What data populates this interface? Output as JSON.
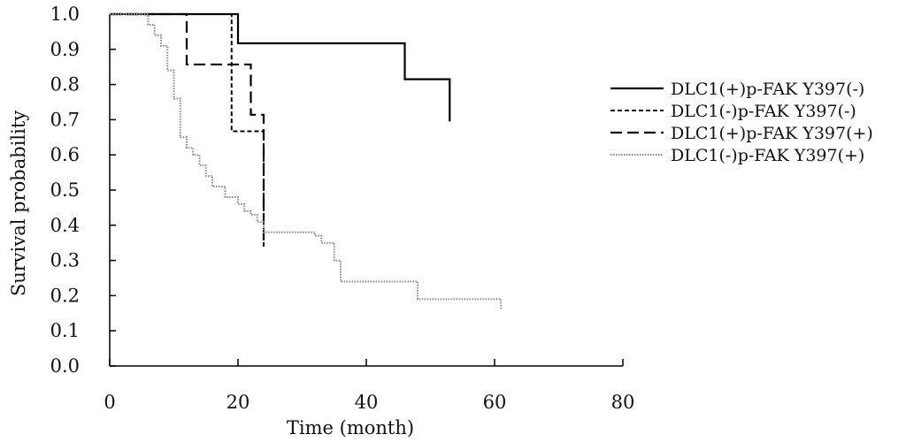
{
  "chart_data": {
    "type": "line",
    "step": true,
    "xlabel": "Time (month)",
    "ylabel": "Survival probability",
    "xlim": [
      0,
      80
    ],
    "ylim": [
      0,
      1
    ],
    "xticks": [
      0,
      20,
      40,
      60,
      80
    ],
    "xtick_labels": [
      "0",
      "20",
      "40",
      "60",
      "80"
    ],
    "yticks": [
      0,
      0.1,
      0.2,
      0.3,
      0.4,
      0.5,
      0.6,
      0.7,
      0.8,
      0.9,
      1.0
    ],
    "ytick_labels": [
      "0.0",
      "0.1",
      "0.2",
      "0.3",
      "0.4",
      "0.5",
      "0.6",
      "0.7",
      "0.8",
      "0.9",
      "1.0"
    ],
    "grid": false,
    "legend_position": "right",
    "series": [
      {
        "name": "DLC1(+)p-FAK Y397(-)",
        "line_style": "solid",
        "color": "#000000",
        "x": [
          0,
          20,
          46,
          53
        ],
        "y": [
          1.0,
          0.917,
          0.815,
          0.695
        ]
      },
      {
        "name": "DLC1(-)p-FAK Y397(-)",
        "line_style": "dashed",
        "color": "#000000",
        "x": [
          0,
          19,
          24
        ],
        "y": [
          1.0,
          0.667,
          0.333
        ]
      },
      {
        "name": "DLC1(+)p-FAK Y397(+)",
        "line_style": "long-dashed",
        "color": "#000000",
        "x": [
          0,
          12,
          22,
          24
        ],
        "y": [
          1.0,
          0.857,
          0.714,
          0.357
        ]
      },
      {
        "name": "DLC1(-)p-FAK Y397(+)",
        "line_style": "dotted",
        "color": "#888888",
        "x": [
          0,
          6,
          7,
          8,
          9,
          10,
          11,
          12,
          13,
          14,
          15,
          16,
          18,
          20,
          21,
          22,
          23,
          24,
          32,
          33,
          35,
          36,
          48,
          61
        ],
        "y": [
          1.0,
          0.97,
          0.94,
          0.91,
          0.84,
          0.76,
          0.65,
          0.62,
          0.6,
          0.57,
          0.54,
          0.51,
          0.48,
          0.46,
          0.44,
          0.43,
          0.41,
          0.38,
          0.37,
          0.35,
          0.3,
          0.24,
          0.19,
          0.16
        ]
      }
    ]
  }
}
